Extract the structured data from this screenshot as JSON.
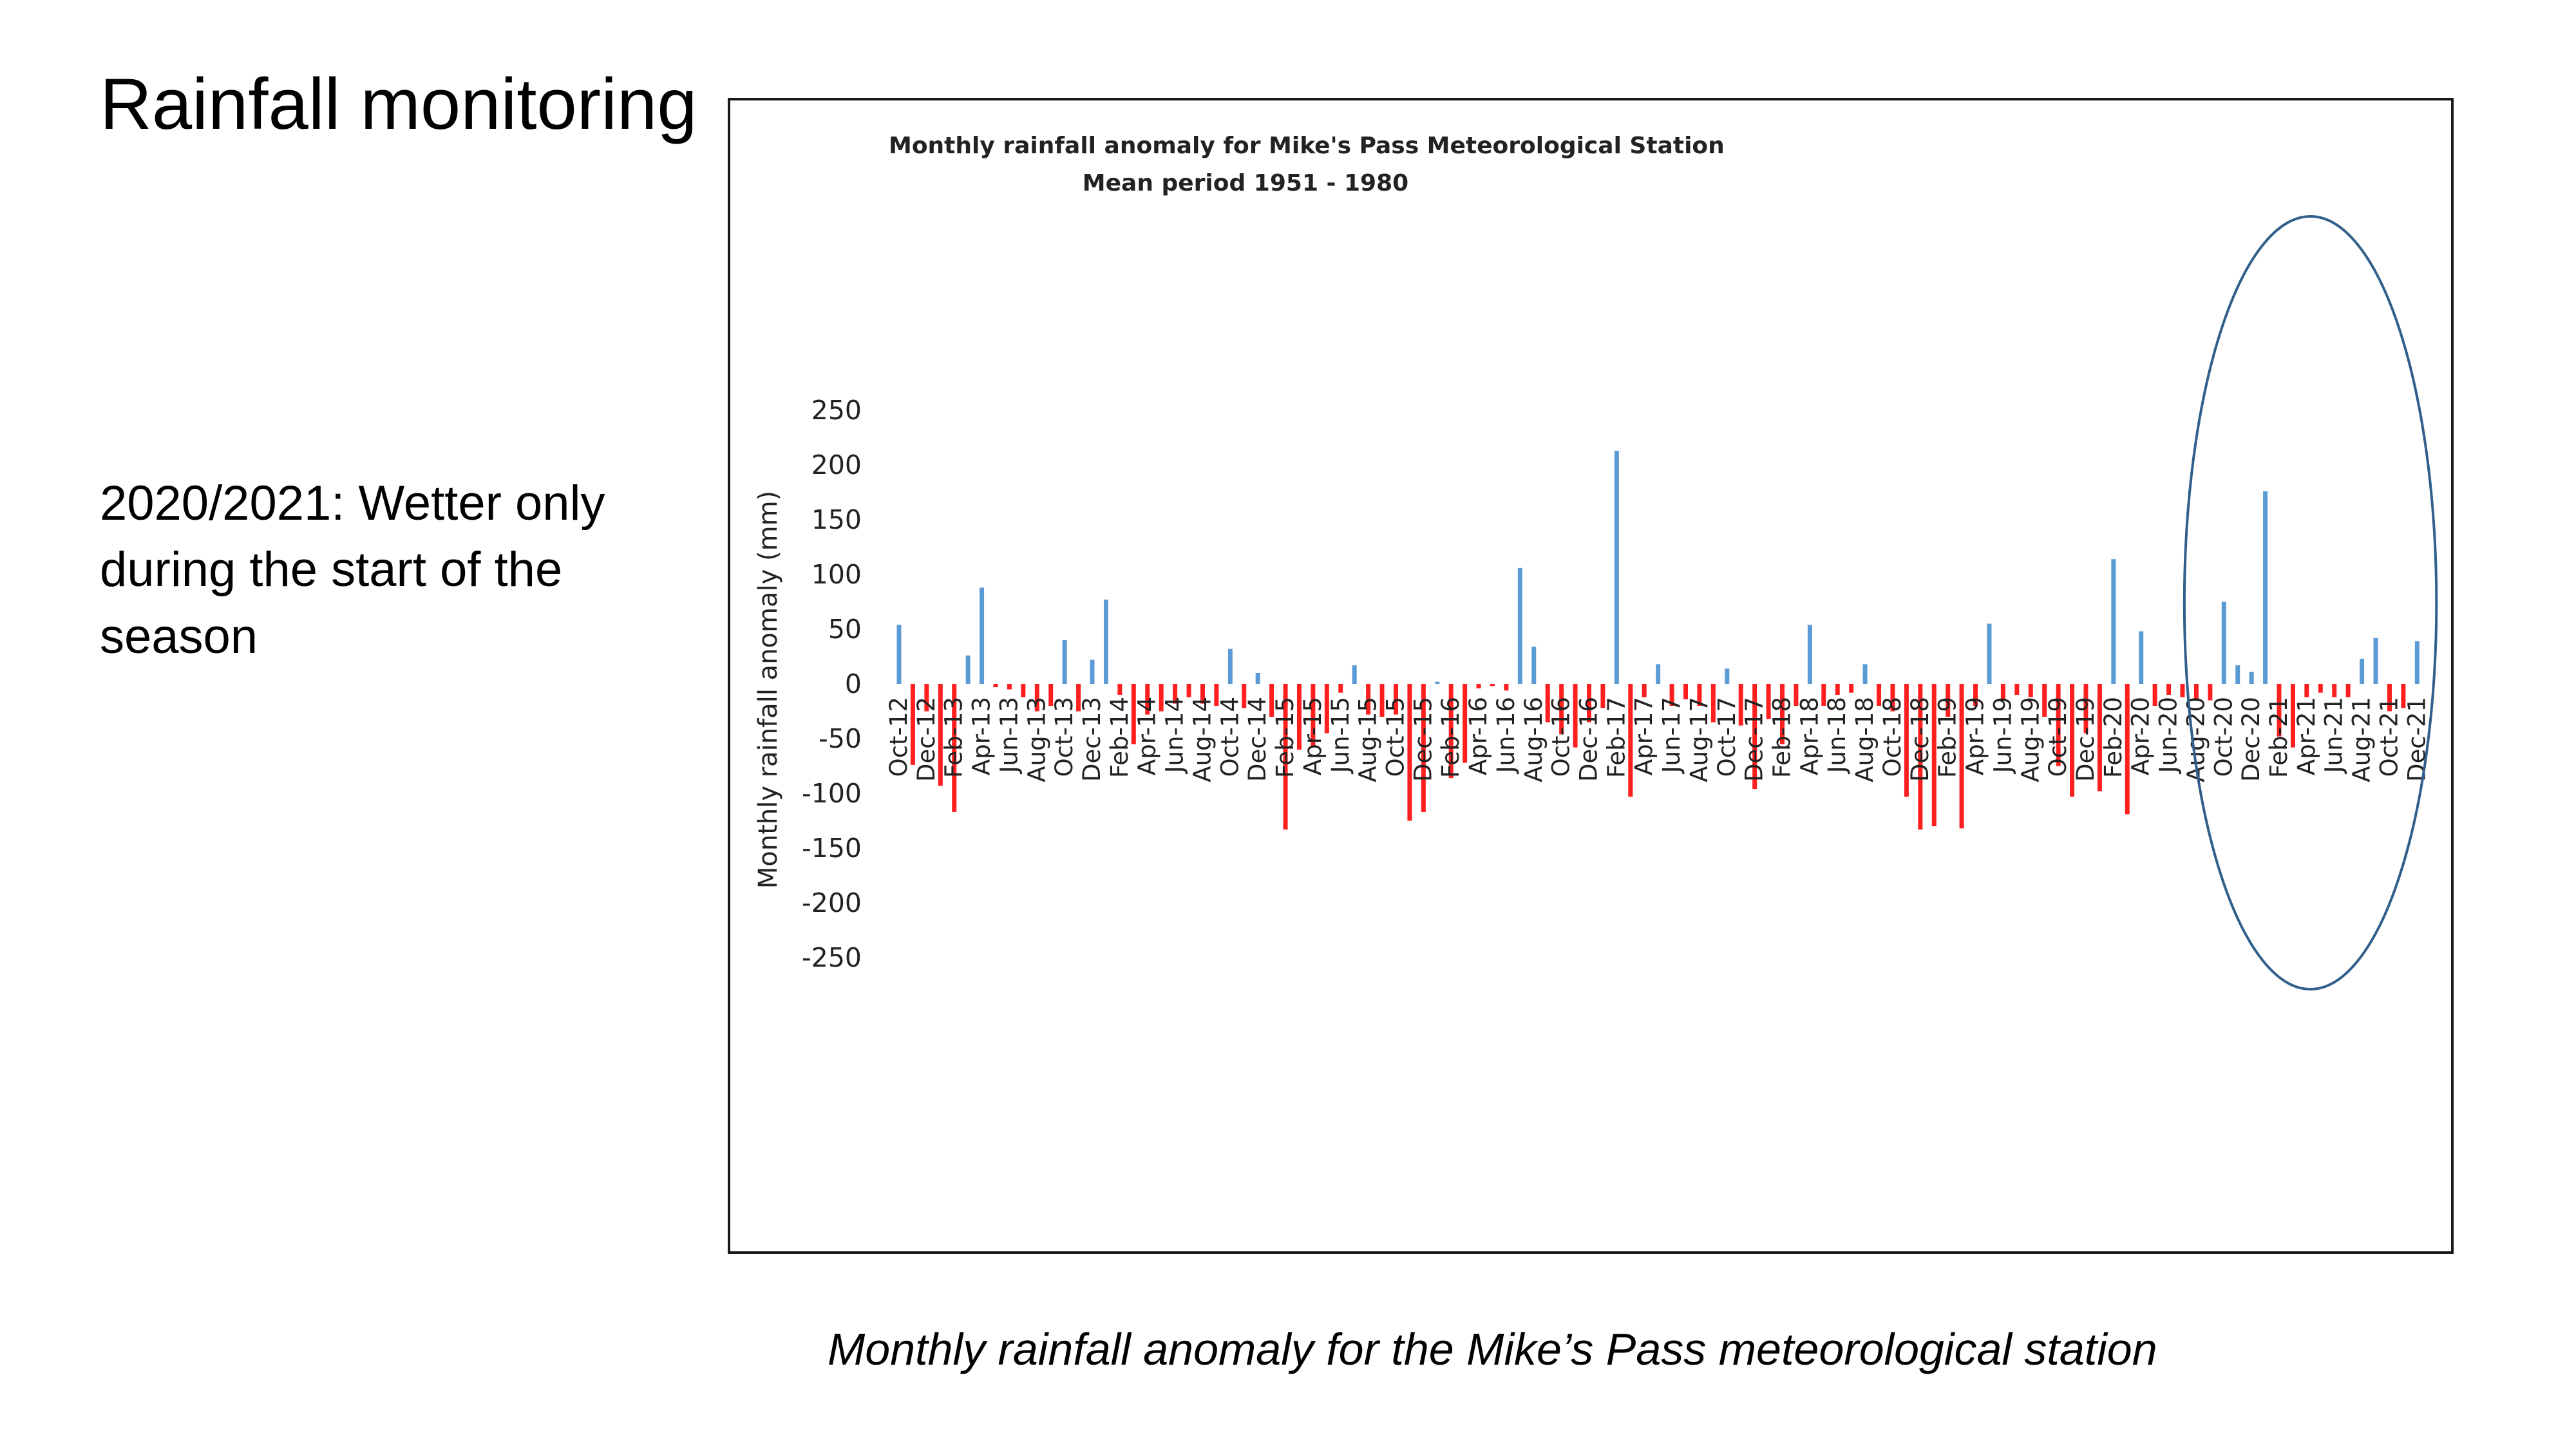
{
  "slide": {
    "title": "Rainfall monitoring",
    "bullet": "2020/2021: Wetter only during the start of the season",
    "caption": "Monthly rainfall anomaly for the Mike’s Pass meteorological station"
  },
  "chart_data": {
    "type": "bar",
    "title": "Monthly rainfall anomaly for Mike's Pass Meteorological Station",
    "subtitle": "Mean period 1951 - 1980",
    "xlabel": "",
    "ylabel": "Monthly rainfall anomaly (mm)",
    "ylim": [
      -250,
      250
    ],
    "yticks": [
      250,
      200,
      150,
      100,
      50,
      0,
      -50,
      -100,
      -150,
      -200,
      -250
    ],
    "grid": false,
    "positive_color": "#5b9bd5",
    "negative_color": "#ff1f1f",
    "highlight_ellipse_color": "#2f5f8a",
    "highlight_range": [
      "Sep-20",
      "Dec-21"
    ],
    "tick_labels": [
      "Oct-12",
      "Dec-12",
      "Feb-13",
      "Apr-13",
      "Jun-13",
      "Aug-13",
      "Oct-13",
      "Dec-13",
      "Feb-14",
      "Apr-14",
      "Jun-14",
      "Aug-14",
      "Oct-14",
      "Dec-14",
      "Feb-15",
      "Apr-15",
      "Jun-15",
      "Aug-15",
      "Oct-15",
      "Dec-15",
      "Feb-16",
      "Apr-16",
      "Jun-16",
      "Aug-16",
      "Oct-16",
      "Dec-16",
      "Feb-17",
      "Apr-17",
      "Jun-17",
      "Aug-17",
      "Oct-17",
      "Dec-17",
      "Feb-18",
      "Apr-18",
      "Jun-18",
      "Aug-18",
      "Oct-18",
      "Dec-18",
      "Feb-19",
      "Apr-19",
      "Jun-19",
      "Aug-19",
      "Oct-19",
      "Dec-19",
      "Feb-20",
      "Apr-20",
      "Jun-20",
      "Aug-20",
      "Oct-20",
      "Dec-20",
      "Feb-21",
      "Apr-21",
      "Jun-21",
      "Aug-21",
      "Oct-21",
      "Dec-21"
    ],
    "categories": [
      "Oct-12",
      "Nov-12",
      "Dec-12",
      "Jan-13",
      "Feb-13",
      "Mar-13",
      "Apr-13",
      "May-13",
      "Jun-13",
      "Jul-13",
      "Aug-13",
      "Sep-13",
      "Oct-13",
      "Nov-13",
      "Dec-13",
      "Jan-14",
      "Feb-14",
      "Mar-14",
      "Apr-14",
      "May-14",
      "Jun-14",
      "Jul-14",
      "Aug-14",
      "Sep-14",
      "Oct-14",
      "Nov-14",
      "Dec-14",
      "Jan-15",
      "Feb-15",
      "Mar-15",
      "Apr-15",
      "May-15",
      "Jun-15",
      "Jul-15",
      "Aug-15",
      "Sep-15",
      "Oct-15",
      "Nov-15",
      "Dec-15",
      "Jan-16",
      "Feb-16",
      "Mar-16",
      "Apr-16",
      "May-16",
      "Jun-16",
      "Jul-16",
      "Aug-16",
      "Sep-16",
      "Oct-16",
      "Nov-16",
      "Dec-16",
      "Jan-17",
      "Feb-17",
      "Mar-17",
      "Apr-17",
      "May-17",
      "Jun-17",
      "Jul-17",
      "Aug-17",
      "Sep-17",
      "Oct-17",
      "Nov-17",
      "Dec-17",
      "Jan-18",
      "Feb-18",
      "Mar-18",
      "Apr-18",
      "May-18",
      "Jun-18",
      "Jul-18",
      "Aug-18",
      "Sep-18",
      "Oct-18",
      "Nov-18",
      "Dec-18",
      "Jan-19",
      "Feb-19",
      "Mar-19",
      "Apr-19",
      "May-19",
      "Jun-19",
      "Jul-19",
      "Aug-19",
      "Sep-19",
      "Oct-19",
      "Nov-19",
      "Dec-19",
      "Jan-20",
      "Feb-20",
      "Mar-20",
      "Apr-20",
      "May-20",
      "Jun-20",
      "Jul-20",
      "Aug-20",
      "Sep-20",
      "Oct-20",
      "Nov-20",
      "Dec-20",
      "Jan-21",
      "Feb-21",
      "Mar-21",
      "Apr-21",
      "May-21",
      "Jun-21",
      "Jul-21",
      "Aug-21",
      "Sep-21",
      "Oct-21",
      "Nov-21",
      "Dec-21"
    ],
    "values": [
      54,
      -74,
      -25,
      -93,
      -117,
      26,
      88,
      -3,
      -5,
      -12,
      -25,
      -20,
      40,
      -25,
      22,
      77,
      -10,
      -55,
      -28,
      -25,
      -18,
      -12,
      -18,
      -20,
      32,
      -22,
      10,
      -30,
      -133,
      -60,
      -57,
      -45,
      -8,
      17,
      -28,
      -30,
      -28,
      -125,
      -117,
      2,
      -86,
      -72,
      -4,
      -2,
      -6,
      106,
      34,
      -35,
      -46,
      -58,
      -35,
      -22,
      213,
      -103,
      -12,
      18,
      -20,
      -14,
      -20,
      -35,
      14,
      -38,
      -96,
      -32,
      -55,
      -20,
      54,
      -20,
      -10,
      -8,
      18,
      -20,
      -25,
      -103,
      -133,
      -130,
      -30,
      -132,
      -20,
      55,
      -15,
      -10,
      -12,
      -30,
      -75,
      -103,
      -45,
      -98,
      114,
      -119,
      48,
      -20,
      -10,
      -12,
      -15,
      -15,
      75,
      17,
      11,
      176,
      -48,
      -58,
      -12,
      -8,
      -12,
      -12,
      23,
      42,
      -25,
      -22,
      39
    ]
  }
}
